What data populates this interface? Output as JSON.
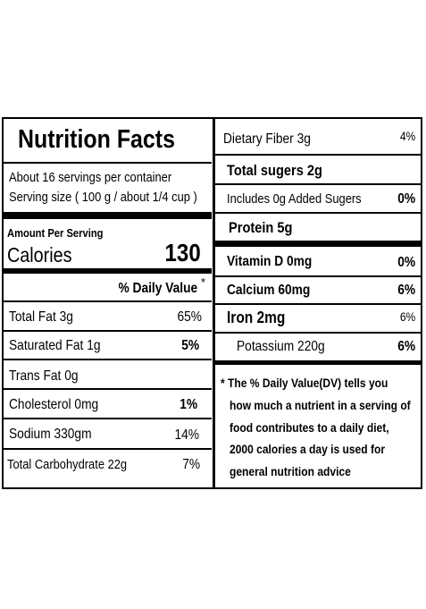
{
  "left": {
    "title": "Nutrition Facts",
    "servings_per_container": "About 16 servings per container",
    "serving_size": "Serving size ( 100 g / about 1/4 cup )",
    "amount_per_serving": "Amount Per Serving",
    "calories_label": "Calories",
    "calories_value": "130",
    "daily_value_header": "% Daily Value",
    "daily_value_asterisk": "*",
    "rows": [
      {
        "label": "Total Fat  3g",
        "dv": "65%"
      },
      {
        "label": "Saturated Fat  1g",
        "dv": "5%"
      },
      {
        "label": "Trans Fat 0g",
        "dv": ""
      },
      {
        "label": "Cholesterol  0mg",
        "dv": "1%"
      },
      {
        "label": "Sodium  330gm",
        "dv": "14%"
      },
      {
        "label": "Total Carbohydrate 22g",
        "dv": "7%"
      }
    ]
  },
  "right": {
    "rows": [
      {
        "label": "Dietary Fiber 3g",
        "dv": "4%"
      },
      {
        "label": "Total sugers 2g",
        "dv": ""
      },
      {
        "label": "Includes 0g Added Sugers",
        "dv": "0%"
      },
      {
        "label": "Protein  5g",
        "dv": ""
      },
      {
        "label": "Vitamin D 0mg",
        "dv": "0%"
      },
      {
        "label": "Calcium  60mg",
        "dv": "6%"
      },
      {
        "label": "Iron  2mg",
        "dv": "6%"
      },
      {
        "label": "Potassium 220g",
        "dv": "6%"
      }
    ],
    "footnote": [
      "* The % Daily Value(DV)  tells you",
      "how much a nutrient in a serving of",
      "food contributes to a daily diet,",
      "2000 calories a day is used for",
      "general nutrition advice"
    ]
  }
}
